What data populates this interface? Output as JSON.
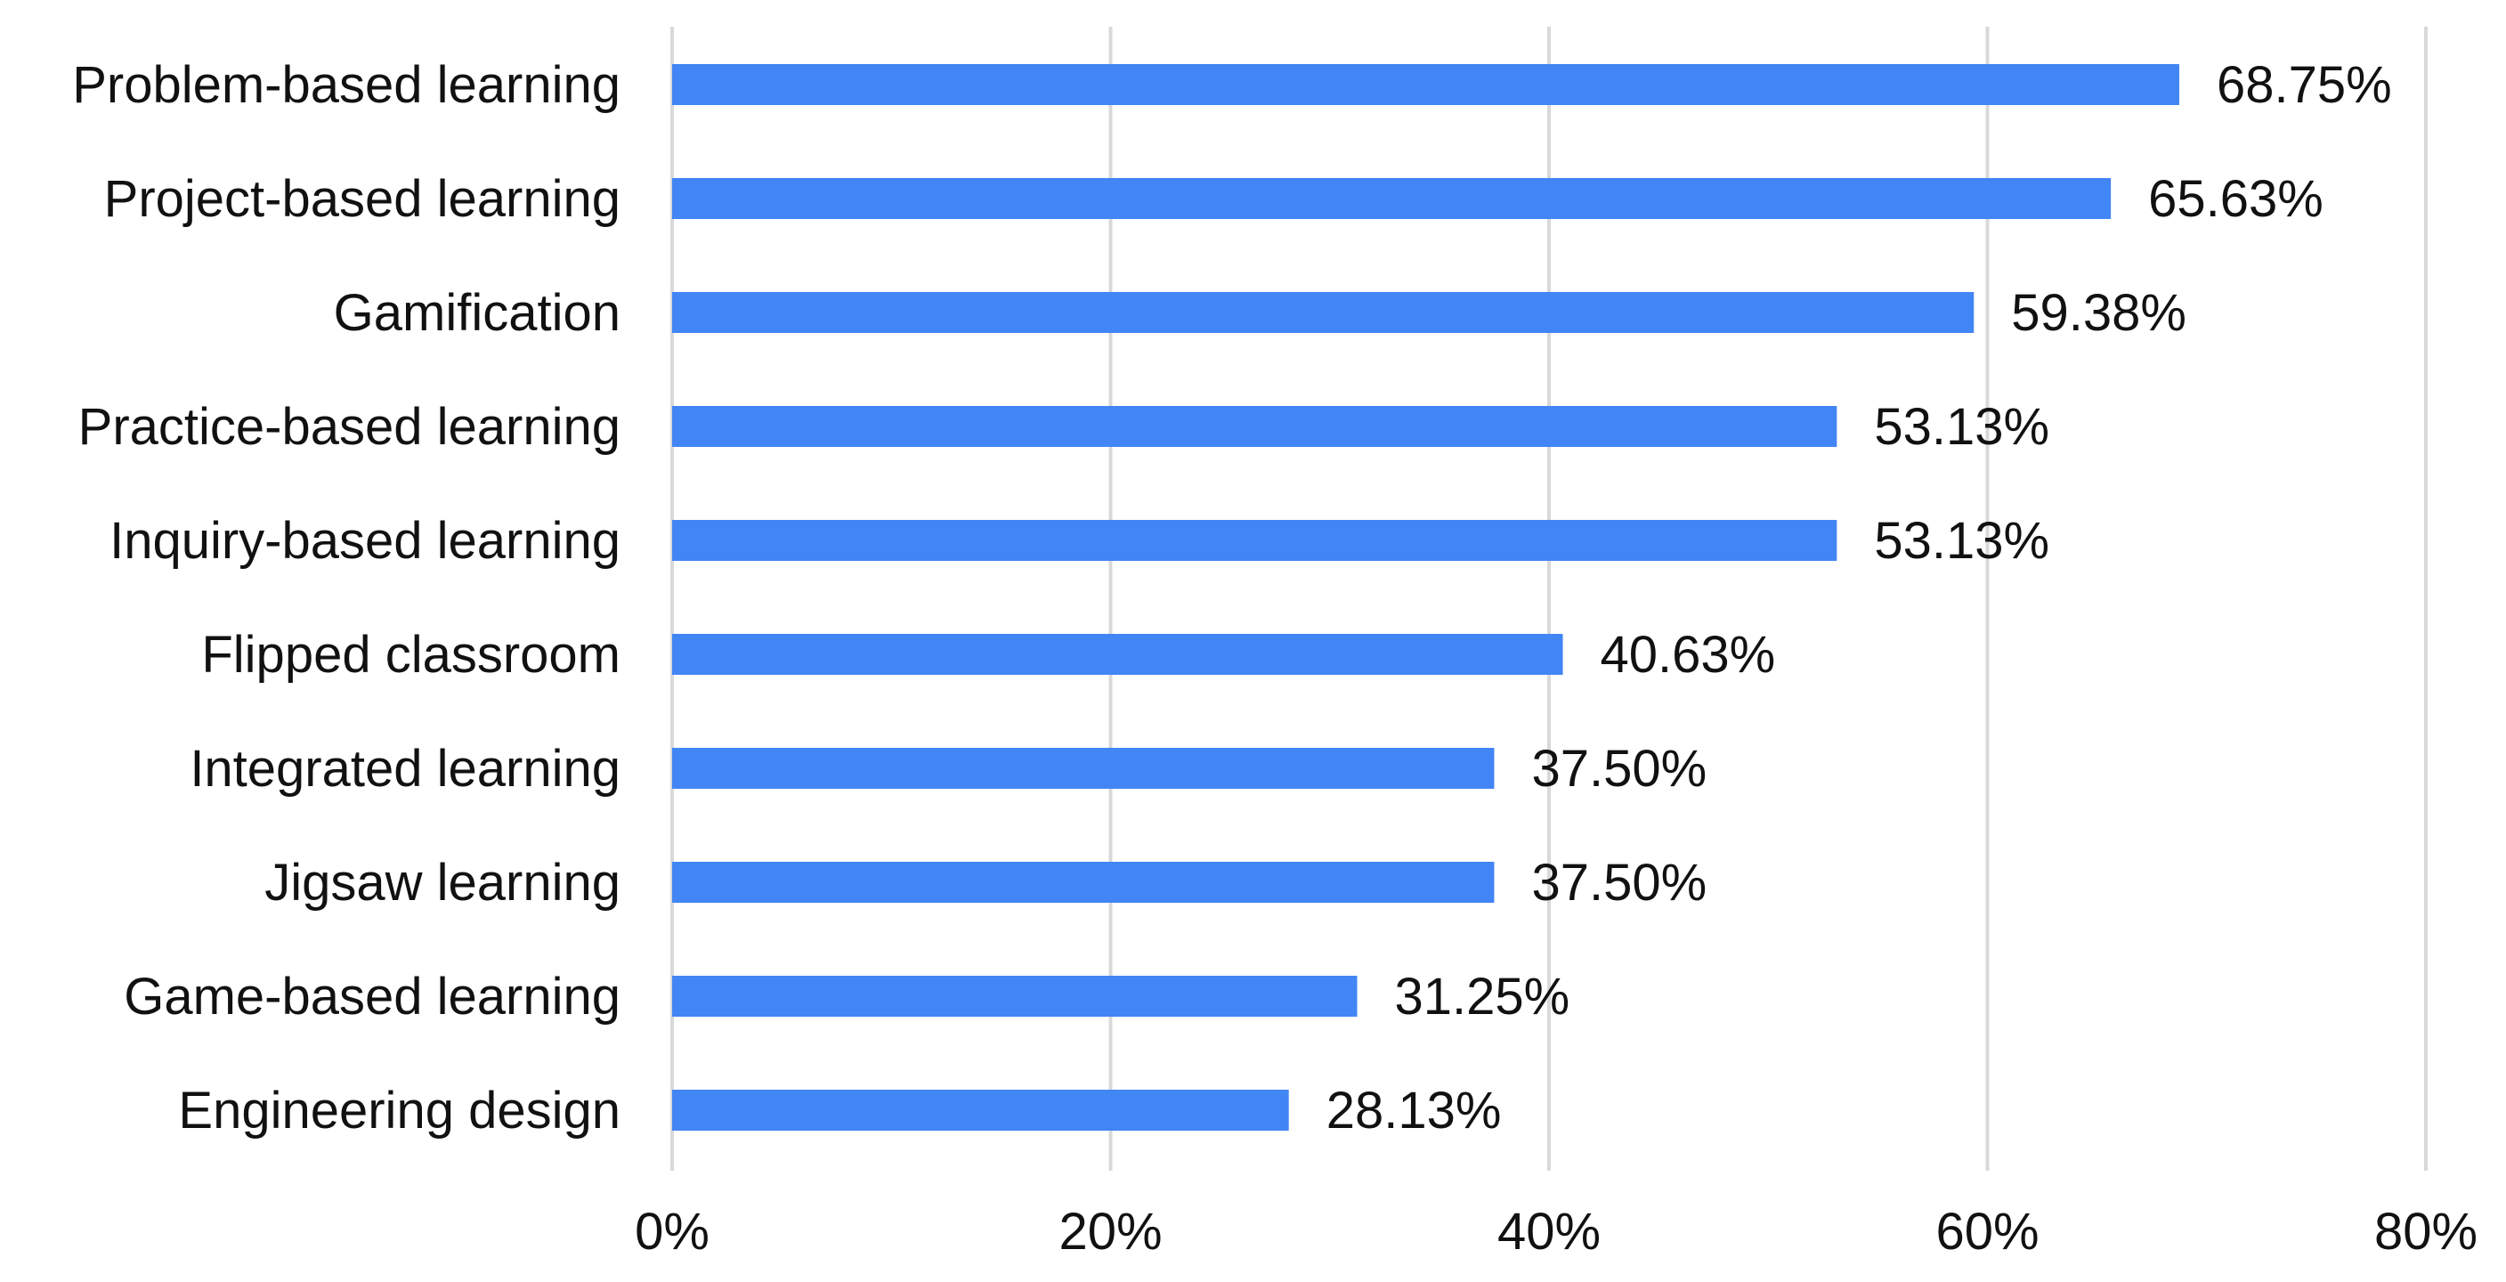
{
  "chart_data": {
    "type": "bar",
    "orientation": "horizontal",
    "title": "",
    "xlabel": "",
    "ylabel": "",
    "categories": [
      "Problem-based learning",
      "Project-based learning",
      "Gamification",
      "Practice-based learning",
      "Inquiry-based learning",
      "Flipped classroom",
      "Integrated learning",
      "Jigsaw learning",
      "Game-based learning",
      "Engineering design"
    ],
    "values": [
      68.75,
      65.63,
      59.38,
      53.13,
      53.13,
      40.63,
      37.5,
      37.5,
      31.25,
      28.13
    ],
    "value_labels": [
      "68.75%",
      "65.63%",
      "59.38%",
      "53.13%",
      "53.13%",
      "40.63%",
      "37.50%",
      "37.50%",
      "31.25%",
      "28.13%"
    ],
    "xlim": [
      0,
      80
    ],
    "x_ticks": [
      0,
      20,
      40,
      60,
      80
    ],
    "x_tick_labels": [
      "0%",
      "20%",
      "40%",
      "60%",
      "80%"
    ],
    "grid": "vertical",
    "legend": "none",
    "bar_color": "#4285f4",
    "grid_color": "#d9d9d9"
  }
}
